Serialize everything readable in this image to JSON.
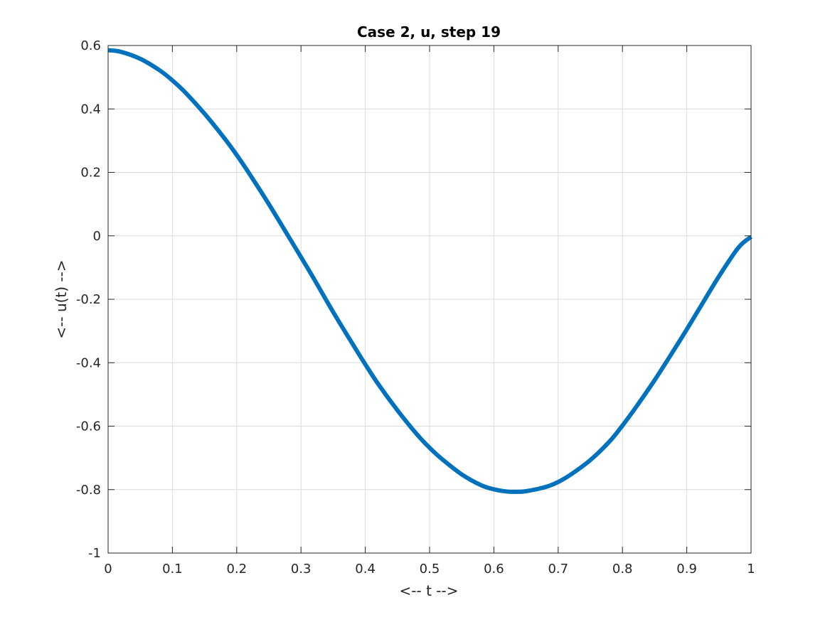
{
  "colors": {
    "series": "#0072BD",
    "axis": "#262626",
    "grid": "#dcdcdc",
    "background": "#ffffff"
  },
  "chart_data": {
    "type": "line",
    "title": "Case 2, u, step 19",
    "xlabel": "<-- t -->",
    "ylabel": "<-- u(t) -->",
    "xlim": [
      0,
      1
    ],
    "ylim": [
      -1,
      0.6
    ],
    "grid": true,
    "x_ticks": [
      0,
      0.1,
      0.2,
      0.3,
      0.4,
      0.5,
      0.6,
      0.7,
      0.8,
      0.9,
      1
    ],
    "x_tick_labels": [
      "0",
      "0.1",
      "0.2",
      "0.3",
      "0.4",
      "0.5",
      "0.6",
      "0.7",
      "0.8",
      "0.9",
      "1"
    ],
    "y_ticks": [
      -1,
      -0.8,
      -0.6,
      -0.4,
      -0.2,
      0,
      0.2,
      0.4,
      0.6
    ],
    "y_tick_labels": [
      "-1",
      "-0.8",
      "-0.6",
      "-0.4",
      "-0.2",
      "0",
      "0.2",
      "0.4",
      "0.6"
    ],
    "series": [
      {
        "x": [
          0,
          0.02,
          0.05,
          0.08,
          0.1,
          0.12,
          0.15,
          0.18,
          0.2,
          0.22,
          0.25,
          0.28,
          0.3,
          0.32,
          0.35,
          0.38,
          0.4,
          0.42,
          0.45,
          0.48,
          0.5,
          0.52,
          0.55,
          0.58,
          0.6,
          0.62,
          0.635,
          0.65,
          0.68,
          0.7,
          0.72,
          0.75,
          0.78,
          0.8,
          0.82,
          0.85,
          0.88,
          0.9,
          0.92,
          0.95,
          0.98,
          1.0
        ],
        "y": [
          0.585,
          0.58,
          0.558,
          0.522,
          0.49,
          0.452,
          0.385,
          0.31,
          0.255,
          0.195,
          0.1,
          0.0,
          -0.067,
          -0.135,
          -0.24,
          -0.34,
          -0.405,
          -0.467,
          -0.55,
          -0.625,
          -0.668,
          -0.705,
          -0.752,
          -0.786,
          -0.799,
          -0.806,
          -0.807,
          -0.805,
          -0.792,
          -0.776,
          -0.752,
          -0.707,
          -0.648,
          -0.598,
          -0.543,
          -0.455,
          -0.36,
          -0.295,
          -0.228,
          -0.128,
          -0.038,
          -0.003
        ]
      }
    ]
  }
}
